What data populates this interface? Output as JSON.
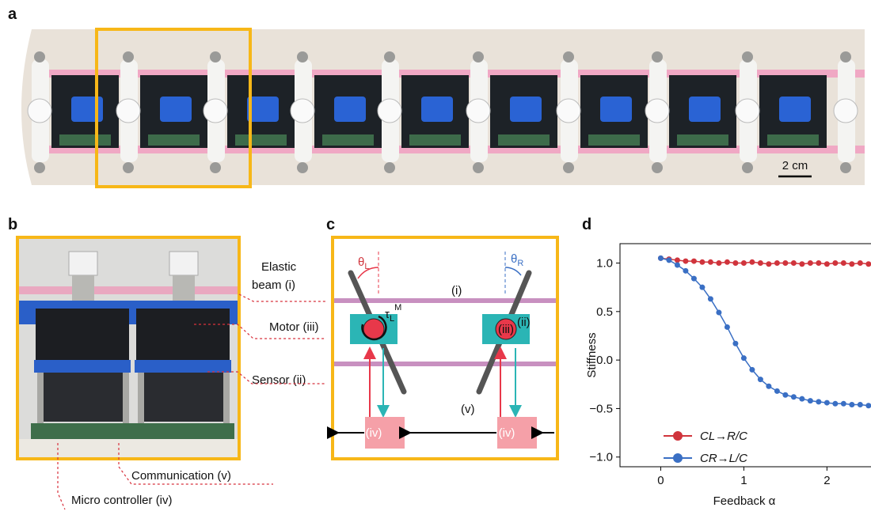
{
  "panels": {
    "a": {
      "label": "a",
      "scale_bar": "2 cm"
    },
    "b": {
      "label": "b",
      "callouts": [
        "Elastic",
        "beam (i)",
        "Motor (iii)",
        "Sensor (ii)",
        "Communication (v)",
        "Micro controller (iv)"
      ]
    },
    "c": {
      "label": "c",
      "theta_left": [
        "θ",
        "L"
      ],
      "theta_right": [
        "θ",
        "R"
      ],
      "torque": [
        "τ",
        "L",
        "M"
      ],
      "beam": "(i)",
      "sensor": "(ii)",
      "motor": "(iii)",
      "controller": "(iv)",
      "communication": "(v)"
    },
    "d": {
      "label": "d"
    }
  },
  "chart_data": {
    "type": "line",
    "y_label": "Stiffness",
    "x_label": "Feedback α",
    "x": [
      0,
      0.1,
      0.2,
      0.3,
      0.4,
      0.5,
      0.6,
      0.7,
      0.8,
      0.9,
      1.0,
      1.1,
      1.2,
      1.3,
      1.4,
      1.5,
      1.6,
      1.7,
      1.8,
      1.9,
      2.0,
      2.1,
      2.2,
      2.3,
      2.4,
      2.5
    ],
    "series": [
      {
        "name": "CL→R/C",
        "color": "#d0343c",
        "values": [
          1.05,
          1.04,
          1.03,
          1.02,
          1.02,
          1.01,
          1.01,
          1.0,
          1.01,
          1.0,
          1.0,
          1.01,
          1.0,
          0.99,
          1.0,
          1.0,
          1.0,
          0.99,
          1.0,
          1.0,
          0.99,
          1.0,
          1.0,
          0.99,
          1.0,
          0.99
        ]
      },
      {
        "name": "CR→L/C",
        "color": "#3a6fc4",
        "values": [
          1.05,
          1.03,
          0.98,
          0.92,
          0.84,
          0.75,
          0.63,
          0.49,
          0.34,
          0.17,
          0.02,
          -0.1,
          -0.2,
          -0.27,
          -0.32,
          -0.36,
          -0.38,
          -0.4,
          -0.42,
          -0.43,
          -0.44,
          -0.45,
          -0.45,
          -0.46,
          -0.46,
          -0.47
        ]
      }
    ],
    "xlim": [
      -0.49,
      2.53
    ],
    "ylim": [
      -1.1,
      1.2
    ],
    "xticks": [
      0,
      1,
      2
    ],
    "yticks": [
      {
        "value": -1,
        "label": "−1.0"
      },
      {
        "value": -0.5,
        "label": "−0.5"
      },
      {
        "value": 0,
        "label": "0.0"
      },
      0.5,
      {
        "value": 1,
        "label": "1.0"
      }
    ],
    "legend": "lower left"
  }
}
